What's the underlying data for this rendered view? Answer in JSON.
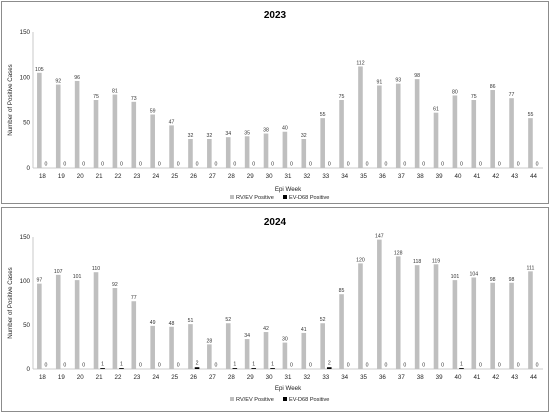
{
  "chart_data": [
    {
      "type": "bar",
      "title": "2023",
      "xlabel": "Epi Week",
      "ylabel": "Number of Positive Cases",
      "ylim": [
        0,
        150
      ],
      "yticks": [
        0,
        50,
        100,
        150
      ],
      "grid": false,
      "legend": "bottom-center",
      "categories": [
        "18",
        "19",
        "20",
        "21",
        "22",
        "23",
        "24",
        "25",
        "26",
        "27",
        "28",
        "29",
        "30",
        "31",
        "32",
        "33",
        "34",
        "35",
        "36",
        "37",
        "38",
        "39",
        "40",
        "41",
        "42",
        "43",
        "44"
      ],
      "series": [
        {
          "name": "RV/EV Positive",
          "color": "#bfbfbf",
          "values": [
            105,
            92,
            96,
            75,
            81,
            73,
            59,
            47,
            32,
            32,
            34,
            35,
            38,
            40,
            32,
            55,
            75,
            112,
            91,
            93,
            98,
            61,
            80,
            75,
            86,
            77,
            55
          ]
        },
        {
          "name": "EV-D68 Positive",
          "color": "#000000",
          "values": [
            0,
            0,
            0,
            0,
            0,
            0,
            0,
            0,
            0,
            0,
            0,
            0,
            0,
            0,
            0,
            0,
            0,
            0,
            0,
            0,
            0,
            0,
            0,
            0,
            0,
            0,
            0
          ]
        }
      ]
    },
    {
      "type": "bar",
      "title": "2024",
      "xlabel": "Epi Week",
      "ylabel": "Number of Positive Cases",
      "ylim": [
        0,
        150
      ],
      "yticks": [
        0,
        50,
        100,
        150
      ],
      "grid": false,
      "legend": "bottom-center",
      "categories": [
        "18",
        "19",
        "20",
        "21",
        "22",
        "23",
        "24",
        "25",
        "26",
        "27",
        "28",
        "29",
        "30",
        "31",
        "32",
        "33",
        "34",
        "35",
        "36",
        "37",
        "38",
        "39",
        "40",
        "41",
        "42",
        "43",
        "44"
      ],
      "series": [
        {
          "name": "RV/EV Positive",
          "color": "#bfbfbf",
          "values": [
            97,
            107,
            101,
            110,
            92,
            77,
            49,
            48,
            51,
            28,
            52,
            34,
            42,
            30,
            41,
            52,
            85,
            120,
            147,
            128,
            118,
            119,
            101,
            104,
            98,
            98,
            111
          ]
        },
        {
          "name": "EV-D68 Positive",
          "color": "#000000",
          "values": [
            0,
            0,
            0,
            1,
            1,
            0,
            0,
            0,
            2,
            0,
            1,
            1,
            1,
            0,
            0,
            2,
            0,
            0,
            0,
            0,
            0,
            0,
            1,
            0,
            0,
            0,
            0
          ]
        }
      ]
    }
  ]
}
